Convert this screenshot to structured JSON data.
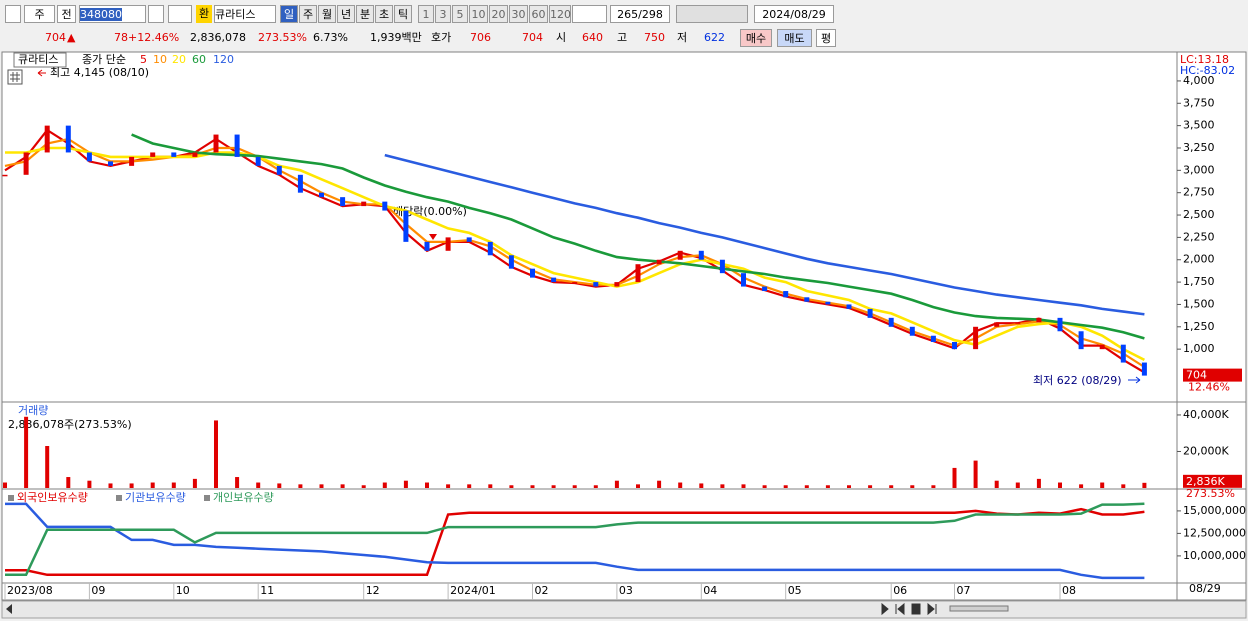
{
  "toolbar": {
    "period": "주",
    "prev": "전",
    "code": "348080",
    "currency": "환",
    "name": "큐라티스",
    "intervals": [
      "일",
      "주",
      "월",
      "년",
      "분",
      "초",
      "틱"
    ],
    "ticks": [
      "1",
      "3",
      "5",
      "10",
      "20",
      "30",
      "60",
      "120"
    ],
    "count": "265",
    "total": "/298",
    "date": "2024/08/29"
  },
  "quote_bar": {
    "price": "704",
    "arrow": "▲",
    "change": "78",
    "change_rate": "+12.46%",
    "volume": "2,836,078",
    "volume_rate": "273.53%",
    "turnover": "6.73%",
    "amount": "1,939백만",
    "quote_label": "호가",
    "ask": "706",
    "bid": "704",
    "open_label": "시",
    "open": "640",
    "high_label": "고",
    "high": "750",
    "low_label": "저",
    "low": "622",
    "buy": "매수",
    "sell": "매도",
    "avg": "평"
  },
  "chart": {
    "price_panel": {
      "type": "candle_line",
      "item": "큐라티스",
      "legend_label": "종가 단순",
      "categories": [
        "2023/08",
        null,
        null,
        null,
        "09",
        null,
        null,
        null,
        "10",
        null,
        null,
        null,
        "11",
        null,
        null,
        null,
        null,
        "12",
        null,
        null,
        null,
        "2024/01",
        null,
        null,
        null,
        "02",
        null,
        null,
        null,
        "03",
        null,
        null,
        null,
        "04",
        null,
        null,
        null,
        "05",
        null,
        null,
        null,
        null,
        "06",
        null,
        null,
        "07",
        null,
        null,
        null,
        null,
        "08",
        null,
        null,
        null,
        null
      ],
      "end_label": "08/29",
      "close": [
        2950,
        3200,
        3500,
        3200,
        3100,
        3050,
        3150,
        3200,
        3150,
        3200,
        3400,
        3150,
        3050,
        2950,
        2750,
        2700,
        2600,
        2650,
        2550,
        2200,
        2100,
        2250,
        2200,
        2050,
        1900,
        1800,
        1750,
        1750,
        1700,
        1750,
        1950,
        2000,
        2100,
        2000,
        1850,
        1700,
        1650,
        1580,
        1530,
        1500,
        1450,
        1350,
        1250,
        1150,
        1080,
        1000,
        1250,
        1300,
        1300,
        1350,
        1200,
        1000,
        1050,
        850,
        704
      ],
      "series": [
        {
          "name": "5",
          "color": "#e00000",
          "values": [
            3000,
            3150,
            3450,
            3300,
            3100,
            3050,
            3100,
            3150,
            3150,
            3200,
            3350,
            3200,
            3050,
            2950,
            2800,
            2700,
            2600,
            2620,
            2600,
            2300,
            2100,
            2200,
            2200,
            2080,
            1920,
            1820,
            1750,
            1740,
            1700,
            1720,
            1900,
            1980,
            2080,
            2020,
            1880,
            1720,
            1660,
            1590,
            1540,
            1500,
            1460,
            1370,
            1270,
            1170,
            1090,
            1010,
            1200,
            1290,
            1290,
            1340,
            1230,
            1040,
            1040,
            880,
            740
          ]
        },
        {
          "name": "10",
          "color": "#ff8c00",
          "values": [
            3050,
            3100,
            3300,
            3350,
            3200,
            3100,
            3100,
            3120,
            3150,
            3170,
            3250,
            3250,
            3150,
            3000,
            2880,
            2750,
            2650,
            2620,
            2620,
            2400,
            2200,
            2200,
            2220,
            2150,
            2000,
            1880,
            1780,
            1750,
            1720,
            1720,
            1820,
            1950,
            2030,
            2050,
            1950,
            1800,
            1700,
            1620,
            1560,
            1520,
            1480,
            1400,
            1300,
            1200,
            1120,
            1040,
            1120,
            1250,
            1280,
            1310,
            1270,
            1120,
            1050,
            950,
            800
          ]
        },
        {
          "name": "20",
          "color": "#ffe600",
          "values": [
            3200,
            3200,
            3250,
            3250,
            3200,
            3150,
            3150,
            3150,
            3150,
            3150,
            3200,
            3200,
            3150,
            3050,
            3000,
            2900,
            2800,
            2700,
            2600,
            2550,
            2450,
            2350,
            2300,
            2200,
            2050,
            1950,
            1850,
            1800,
            1750,
            1700,
            1750,
            1850,
            1950,
            2000,
            1950,
            1900,
            1800,
            1750,
            1650,
            1600,
            1550,
            1450,
            1400,
            1300,
            1200,
            1100,
            1050,
            1150,
            1250,
            1280,
            1300,
            1250,
            1150,
            1000,
            880
          ]
        },
        {
          "name": "60",
          "color": "#1a9a3a",
          "values": [
            null,
            null,
            null,
            null,
            null,
            null,
            3400,
            3300,
            3250,
            3200,
            3180,
            3170,
            3160,
            3130,
            3100,
            3070,
            3020,
            2920,
            2830,
            2760,
            2700,
            2650,
            2580,
            2520,
            2450,
            2350,
            2250,
            2180,
            2100,
            2030,
            2000,
            1980,
            1960,
            1930,
            1900,
            1870,
            1840,
            1800,
            1770,
            1740,
            1700,
            1660,
            1620,
            1550,
            1470,
            1410,
            1370,
            1350,
            1340,
            1330,
            1300,
            1270,
            1240,
            1190,
            1120
          ]
        },
        {
          "name": "120",
          "color": "#2a5ce0",
          "values": [
            null,
            null,
            null,
            null,
            null,
            null,
            null,
            null,
            null,
            null,
            null,
            null,
            null,
            null,
            null,
            null,
            null,
            null,
            3170,
            3110,
            3050,
            2990,
            2930,
            2870,
            2810,
            2750,
            2690,
            2630,
            2580,
            2520,
            2470,
            2410,
            2360,
            2300,
            2250,
            2190,
            2130,
            2070,
            2010,
            1960,
            1920,
            1880,
            1840,
            1790,
            1740,
            1690,
            1650,
            1610,
            1580,
            1550,
            1520,
            1490,
            1450,
            1420,
            1390
          ]
        }
      ],
      "ylim": [
        420,
        4290
      ],
      "yticks": [
        {
          "value": 1000,
          "label": "1,000"
        },
        {
          "value": 1250,
          "label": "1,250"
        },
        {
          "value": 1500,
          "label": "1,500"
        },
        {
          "value": 1750,
          "label": "1,750"
        },
        {
          "value": 2000,
          "label": "2,000"
        },
        {
          "value": 2250,
          "label": "2,250"
        },
        {
          "value": 2500,
          "label": "2,500"
        },
        {
          "value": 2750,
          "label": "2,750"
        },
        {
          "value": 3000,
          "label": "3,000"
        },
        {
          "value": 3250,
          "label": "3,250"
        },
        {
          "value": 3500,
          "label": "3,500"
        },
        {
          "value": 3750,
          "label": "3,750"
        },
        {
          "value": 4000,
          "label": "4,000"
        }
      ],
      "annotations": {
        "high": "최고 4,145 (08/10)",
        "dividend": "배당락(0.00%)",
        "low": "최저 622 (08/29)"
      },
      "lc": "LC:13.18",
      "hc": "HC:-83.02",
      "last_label": "704",
      "last_change": "12.46%"
    },
    "volume_panel": {
      "type": "bar",
      "title": "거래량",
      "info": "2,836,078주(273.53%)",
      "color": "#e00000",
      "values": [
        3000,
        39000,
        23000,
        6000,
        4000,
        2500,
        2500,
        3000,
        3000,
        5000,
        37000,
        6000,
        3000,
        2500,
        2000,
        2000,
        2000,
        1500,
        3000,
        4000,
        3000,
        2000,
        2000,
        2000,
        1500,
        1500,
        1500,
        1500,
        1500,
        4000,
        2000,
        4000,
        3000,
        2500,
        2000,
        2000,
        1500,
        1500,
        1500,
        1500,
        1500,
        1500,
        1500,
        1500,
        1500,
        11000,
        15000,
        4000,
        3000,
        5000,
        3000,
        2000,
        3000,
        2000,
        2836
      ],
      "ylim": [
        0,
        46000
      ],
      "yticks": [
        {
          "value": 20000,
          "label": "20,000K"
        },
        {
          "value": 40000,
          "label": "40,000K"
        }
      ],
      "last_label": "2,836K",
      "last_change": "273.53%"
    },
    "holdings_panel": {
      "type": "line",
      "series": [
        {
          "name": "외국인보유수량",
          "color": "#e00000",
          "values": [
            8400000,
            8400000,
            7900000,
            7900000,
            7900000,
            7900000,
            7900000,
            7900000,
            7900000,
            7900000,
            7900000,
            7900000,
            7900000,
            7900000,
            7900000,
            7900000,
            7900000,
            7900000,
            7900000,
            7900000,
            7900000,
            14600000,
            14800000,
            14800000,
            14800000,
            14800000,
            14800000,
            14800000,
            14800000,
            14800000,
            14800000,
            14800000,
            14800000,
            14800000,
            14800000,
            14800000,
            14800000,
            14800000,
            14800000,
            14800000,
            14800000,
            14800000,
            14800000,
            14800000,
            14800000,
            14800000,
            15000000,
            14700000,
            14600000,
            14800000,
            14700000,
            15200000,
            14600000,
            14600000,
            14900000
          ]
        },
        {
          "name": "기관보유수량",
          "color": "#2a5ce0",
          "values": [
            15780000,
            15780000,
            13220000,
            13220000,
            13220000,
            13220000,
            11780000,
            11780000,
            11220000,
            11220000,
            11000000,
            10900000,
            10800000,
            10700000,
            10600000,
            10500000,
            10300000,
            10100000,
            9900000,
            9600000,
            9300000,
            9220000,
            9220000,
            9220000,
            9220000,
            9220000,
            9220000,
            9220000,
            9220000,
            8800000,
            8440000,
            8440000,
            8440000,
            8440000,
            8440000,
            8440000,
            8440000,
            8440000,
            8440000,
            8440000,
            8440000,
            8440000,
            8440000,
            8440000,
            8440000,
            8440000,
            8440000,
            8440000,
            8440000,
            8440000,
            8440000,
            7900000,
            7560000,
            7560000,
            7560000
          ]
        },
        {
          "name": "개인보유수량",
          "color": "#2e9a5a",
          "values": [
            7900000,
            7900000,
            12900000,
            12900000,
            12900000,
            12900000,
            12900000,
            12900000,
            12900000,
            11500000,
            12560000,
            12560000,
            12560000,
            12560000,
            12560000,
            12560000,
            12560000,
            12560000,
            12560000,
            12560000,
            12560000,
            13200000,
            13200000,
            13200000,
            13200000,
            13200000,
            13200000,
            13200000,
            13200000,
            13500000,
            13700000,
            13700000,
            13700000,
            13700000,
            13700000,
            13700000,
            13700000,
            13700000,
            13700000,
            13700000,
            13700000,
            13700000,
            13700000,
            13700000,
            13700000,
            13900000,
            14600000,
            14600000,
            14600000,
            14600000,
            14600000,
            14700000,
            15700000,
            15700000,
            15800000
          ]
        }
      ],
      "ylim": [
        7100000,
        17100000
      ],
      "yticks": [
        {
          "value": 10000000,
          "label": "10,000,000"
        },
        {
          "value": 12500000,
          "label": "12,500,000"
        },
        {
          "value": 15000000,
          "label": "15,000,000"
        }
      ]
    }
  }
}
